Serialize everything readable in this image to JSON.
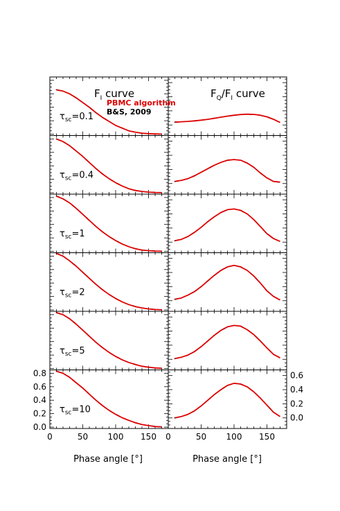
{
  "chart_data": {
    "type": "line",
    "xlabel": "Phase angle [°]",
    "xlim": [
      0,
      180
    ],
    "x_ticks": [
      0,
      50,
      100,
      150
    ],
    "columns": [
      {
        "title_main": "F",
        "title_sub": "I",
        "title_tail": " curve",
        "ylim": [
          -0.02,
          0.85
        ],
        "y_ticks": [
          "0.0",
          "0.2",
          "0.4",
          "0.6",
          "0.8"
        ],
        "tick_side": "left"
      },
      {
        "title_main": "F",
        "title_sub": "Q",
        "title_mid": "/F",
        "title_sub2": "I",
        "title_tail": " curve",
        "ylim": [
          -0.15,
          0.68
        ],
        "y_ticks": [
          "0.0",
          "0.2",
          "0.4",
          "0.6"
        ],
        "tick_side": "right"
      }
    ],
    "legend": {
      "position": "top-right",
      "entries": [
        {
          "name": "PBMC algorithm",
          "color": "#dd0000"
        },
        {
          "name": "B&S, 2009",
          "color": "#000000"
        }
      ]
    },
    "x": [
      10,
      20,
      30,
      40,
      50,
      60,
      70,
      80,
      90,
      100,
      110,
      120,
      130,
      140,
      150,
      160,
      170
    ],
    "rows": [
      {
        "label_sym": "τ",
        "label_sub": "sc",
        "label_val": "=0.1",
        "fi": [
          0.66,
          0.64,
          0.6,
          0.54,
          0.47,
          0.4,
          0.32,
          0.25,
          0.19,
          0.13,
          0.09,
          0.05,
          0.03,
          0.015,
          0.008,
          0.004,
          0.002
        ],
        "fqfi": [
          0.04,
          0.045,
          0.05,
          0.058,
          0.068,
          0.08,
          0.095,
          0.11,
          0.125,
          0.138,
          0.148,
          0.153,
          0.15,
          0.138,
          0.115,
          0.08,
          0.035
        ]
      },
      {
        "label_sym": "τ",
        "label_sub": "sc",
        "label_val": "=0.4",
        "fi": [
          0.8,
          0.76,
          0.7,
          0.62,
          0.54,
          0.45,
          0.36,
          0.28,
          0.21,
          0.15,
          0.1,
          0.06,
          0.035,
          0.02,
          0.01,
          0.005,
          0.003
        ],
        "fqfi": [
          0.03,
          0.045,
          0.07,
          0.11,
          0.16,
          0.21,
          0.26,
          0.3,
          0.33,
          0.34,
          0.33,
          0.29,
          0.23,
          0.15,
          0.08,
          0.03,
          0.02
        ]
      },
      {
        "label_sym": "τ",
        "label_sub": "sc",
        "label_val": "=1",
        "fi": [
          0.82,
          0.78,
          0.72,
          0.64,
          0.55,
          0.46,
          0.37,
          0.29,
          0.22,
          0.16,
          0.11,
          0.07,
          0.04,
          0.02,
          0.01,
          0.005,
          0.003
        ],
        "fqfi": [
          0.02,
          0.04,
          0.08,
          0.14,
          0.21,
          0.29,
          0.36,
          0.42,
          0.46,
          0.47,
          0.45,
          0.4,
          0.32,
          0.22,
          0.12,
          0.05,
          0.01
        ]
      },
      {
        "label_sym": "τ",
        "label_sub": "sc",
        "label_val": "=2",
        "fi": [
          0.84,
          0.8,
          0.73,
          0.65,
          0.56,
          0.47,
          0.38,
          0.3,
          0.23,
          0.17,
          0.12,
          0.08,
          0.05,
          0.03,
          0.015,
          0.007,
          0.003
        ],
        "fqfi": [
          0.02,
          0.04,
          0.08,
          0.13,
          0.2,
          0.28,
          0.36,
          0.43,
          0.48,
          0.5,
          0.48,
          0.43,
          0.35,
          0.25,
          0.14,
          0.06,
          0.01
        ]
      },
      {
        "label_sym": "τ",
        "label_sub": "sc",
        "label_val": "=5",
        "fi": [
          0.83,
          0.8,
          0.74,
          0.66,
          0.57,
          0.48,
          0.39,
          0.31,
          0.24,
          0.18,
          0.13,
          0.09,
          0.06,
          0.035,
          0.02,
          0.009,
          0.004
        ],
        "fqfi": [
          0.01,
          0.03,
          0.06,
          0.11,
          0.18,
          0.26,
          0.34,
          0.41,
          0.46,
          0.48,
          0.47,
          0.42,
          0.35,
          0.26,
          0.16,
          0.07,
          0.02
        ]
      },
      {
        "label_sym": "τ",
        "label_sub": "sc",
        "label_val": "=10",
        "fi": [
          0.83,
          0.8,
          0.74,
          0.66,
          0.58,
          0.49,
          0.4,
          0.32,
          0.25,
          0.19,
          0.14,
          0.1,
          0.065,
          0.04,
          0.022,
          0.01,
          0.004
        ],
        "fqfi": [
          0.0,
          0.02,
          0.05,
          0.1,
          0.17,
          0.25,
          0.33,
          0.4,
          0.46,
          0.49,
          0.48,
          0.44,
          0.37,
          0.28,
          0.18,
          0.08,
          0.02
        ]
      }
    ]
  }
}
